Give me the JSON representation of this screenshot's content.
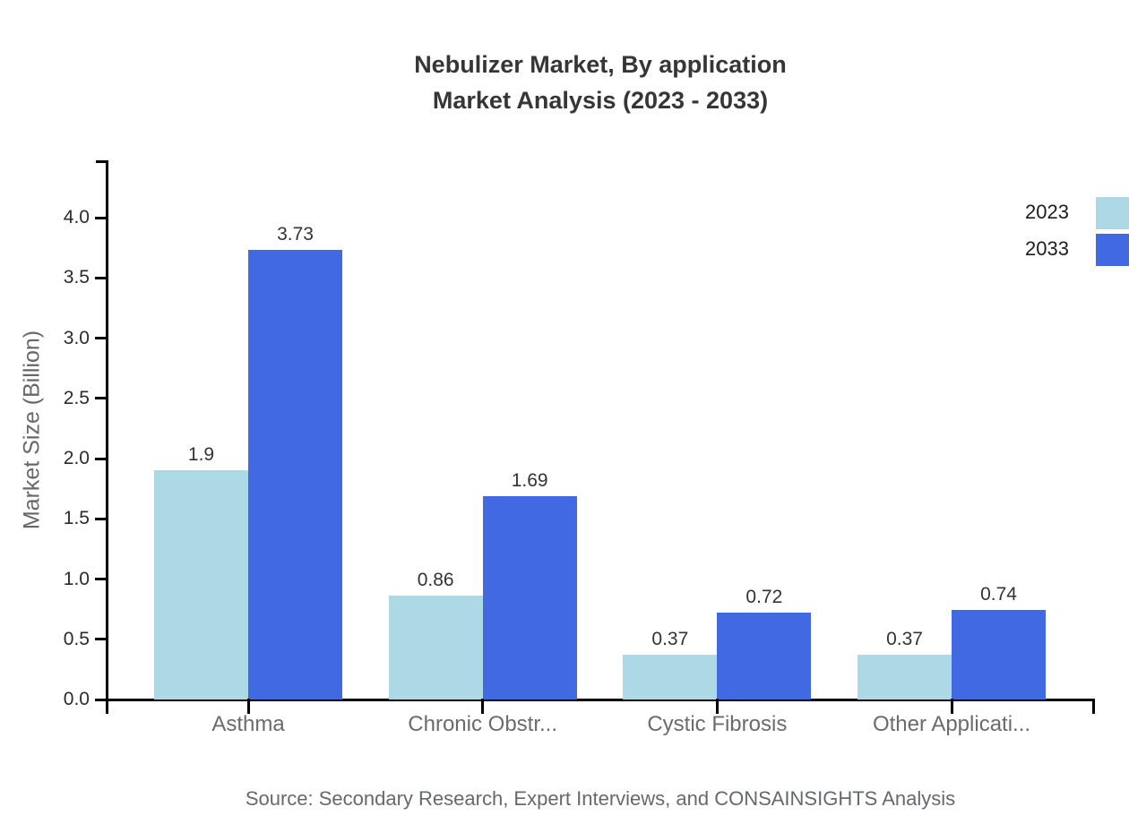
{
  "title": {
    "line1": "Nebulizer Market, By application",
    "line2": "Market Analysis (2023 - 2033)"
  },
  "source_note": "Source: Secondary Research, Expert Interviews, and CONSAINSIGHTS Analysis",
  "colors": {
    "series_2023": "#ADD8E6",
    "series_2033": "#4169E1",
    "axis": "#000000",
    "title_text": "#363636",
    "tick_label_text": "#2b2b2b",
    "value_label_text": "#333333",
    "category_label_text": "#6b6b6b",
    "legend_text": "#1d1d1d",
    "source_text": "#66696c",
    "background": "#ffffff"
  },
  "legend": {
    "position": "top-right",
    "items": [
      {
        "label": "2023",
        "color": "#ADD8E6"
      },
      {
        "label": "2033",
        "color": "#4169E1"
      }
    ]
  },
  "chart_data": {
    "type": "bar",
    "title": "Nebulizer Market, By application Market Analysis (2023 - 2033)",
    "categories": [
      "Asthma",
      "Chronic Obstr...",
      "Cystic Fibrosis",
      "Other Applicati..."
    ],
    "series": [
      {
        "name": "2023",
        "color": "#ADD8E6",
        "values": [
          1.9,
          0.86,
          0.37,
          0.37
        ]
      },
      {
        "name": "2033",
        "color": "#4169E1",
        "values": [
          3.73,
          1.69,
          0.72,
          0.74
        ]
      }
    ],
    "value_labels": [
      [
        "1.9",
        "0.86",
        "0.37",
        "0.37"
      ],
      [
        "3.73",
        "1.69",
        "0.72",
        "0.74"
      ]
    ],
    "xlabel": "",
    "ylabel": "Market Size (Billion)",
    "ylim": [
      0,
      4.5
    ],
    "yticks": [
      0.0,
      0.5,
      1.0,
      1.5,
      2.0,
      2.5,
      3.0,
      3.5,
      4.0
    ],
    "ytick_labels": [
      "0.0",
      "0.5",
      "1.0",
      "1.5",
      "2.0",
      "2.5",
      "3.0",
      "3.5",
      "4.0"
    ],
    "grid": false,
    "legend_position": "top-right"
  }
}
